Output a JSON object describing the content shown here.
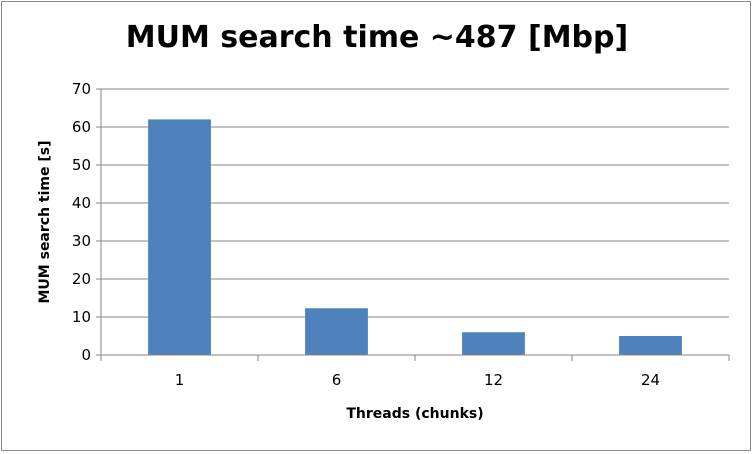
{
  "chart_data": {
    "type": "bar",
    "title": "MUM search time ~487 [Mbp]",
    "xlabel": "Threads (chunks)",
    "ylabel": "MUM search time [s]",
    "categories": [
      "1",
      "6",
      "12",
      "24"
    ],
    "values": [
      62,
      12.3,
      6,
      5
    ],
    "ylim": [
      0,
      70
    ],
    "yticks": [
      0,
      10,
      20,
      30,
      40,
      50,
      60,
      70
    ],
    "grid": true,
    "legend": "none",
    "bar_color": "#4f81bd",
    "grid_color": "#868686"
  }
}
